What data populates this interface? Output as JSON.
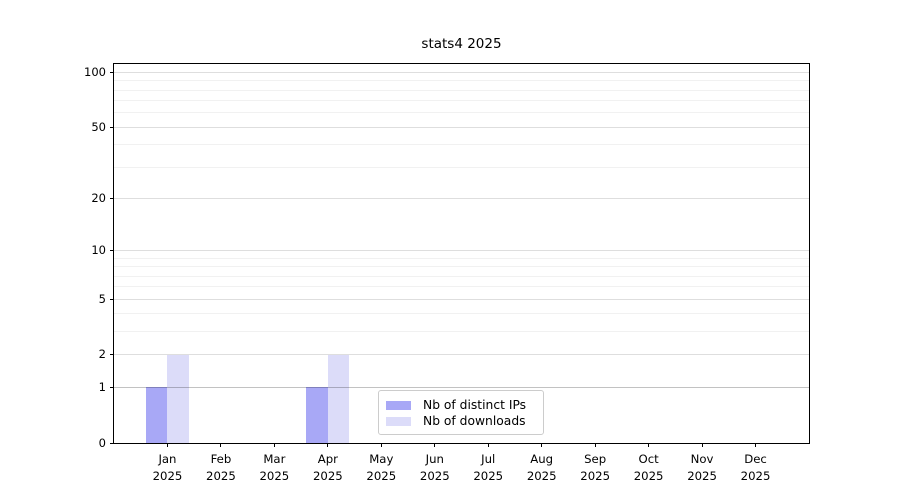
{
  "chart_data": {
    "type": "bar",
    "title": "stats4 2025",
    "categories": [
      "Jan 2025",
      "Feb 2025",
      "Mar 2025",
      "Apr 2025",
      "May 2025",
      "Jun 2025",
      "Jul 2025",
      "Aug 2025",
      "Sep 2025",
      "Oct 2025",
      "Nov 2025",
      "Dec 2025"
    ],
    "series": [
      {
        "name": "Nb of distinct IPs",
        "color": "#a8a8f6",
        "values": [
          1,
          0,
          0,
          1,
          0,
          0,
          0,
          0,
          0,
          0,
          0,
          0
        ]
      },
      {
        "name": "Nb of downloads",
        "color": "#dcdcf9",
        "values": [
          2,
          0,
          0,
          2,
          0,
          0,
          0,
          0,
          0,
          0,
          0,
          0
        ]
      }
    ],
    "xlabel": "",
    "ylabel": "",
    "y_axis": {
      "scale": "log10(1+x)",
      "tick_values": [
        0,
        1,
        2,
        5,
        10,
        20,
        50,
        100
      ],
      "minor_gridline_values": [
        3,
        4,
        6,
        7,
        8,
        9,
        30,
        40,
        60,
        70,
        80,
        90
      ],
      "emphasized_gridline_value": 1,
      "ylim": [
        0,
        111
      ]
    },
    "legend": {
      "position": "lower center",
      "entries": [
        "Nb of distinct IPs",
        "Nb of downloads"
      ]
    },
    "grid": "on"
  },
  "colors": {
    "background": "#ffffff",
    "spine": "#000000",
    "major_gridline": "rgba(0,0,0,0.13)",
    "emphasized_gridline": "rgba(0,0,0,0.24)",
    "minor_gridline": "rgba(0,0,0,0.055)",
    "legend_border": "#cccccc",
    "bar_distinct_ips": "#a8a8f6",
    "bar_downloads": "#dcdcf9"
  }
}
